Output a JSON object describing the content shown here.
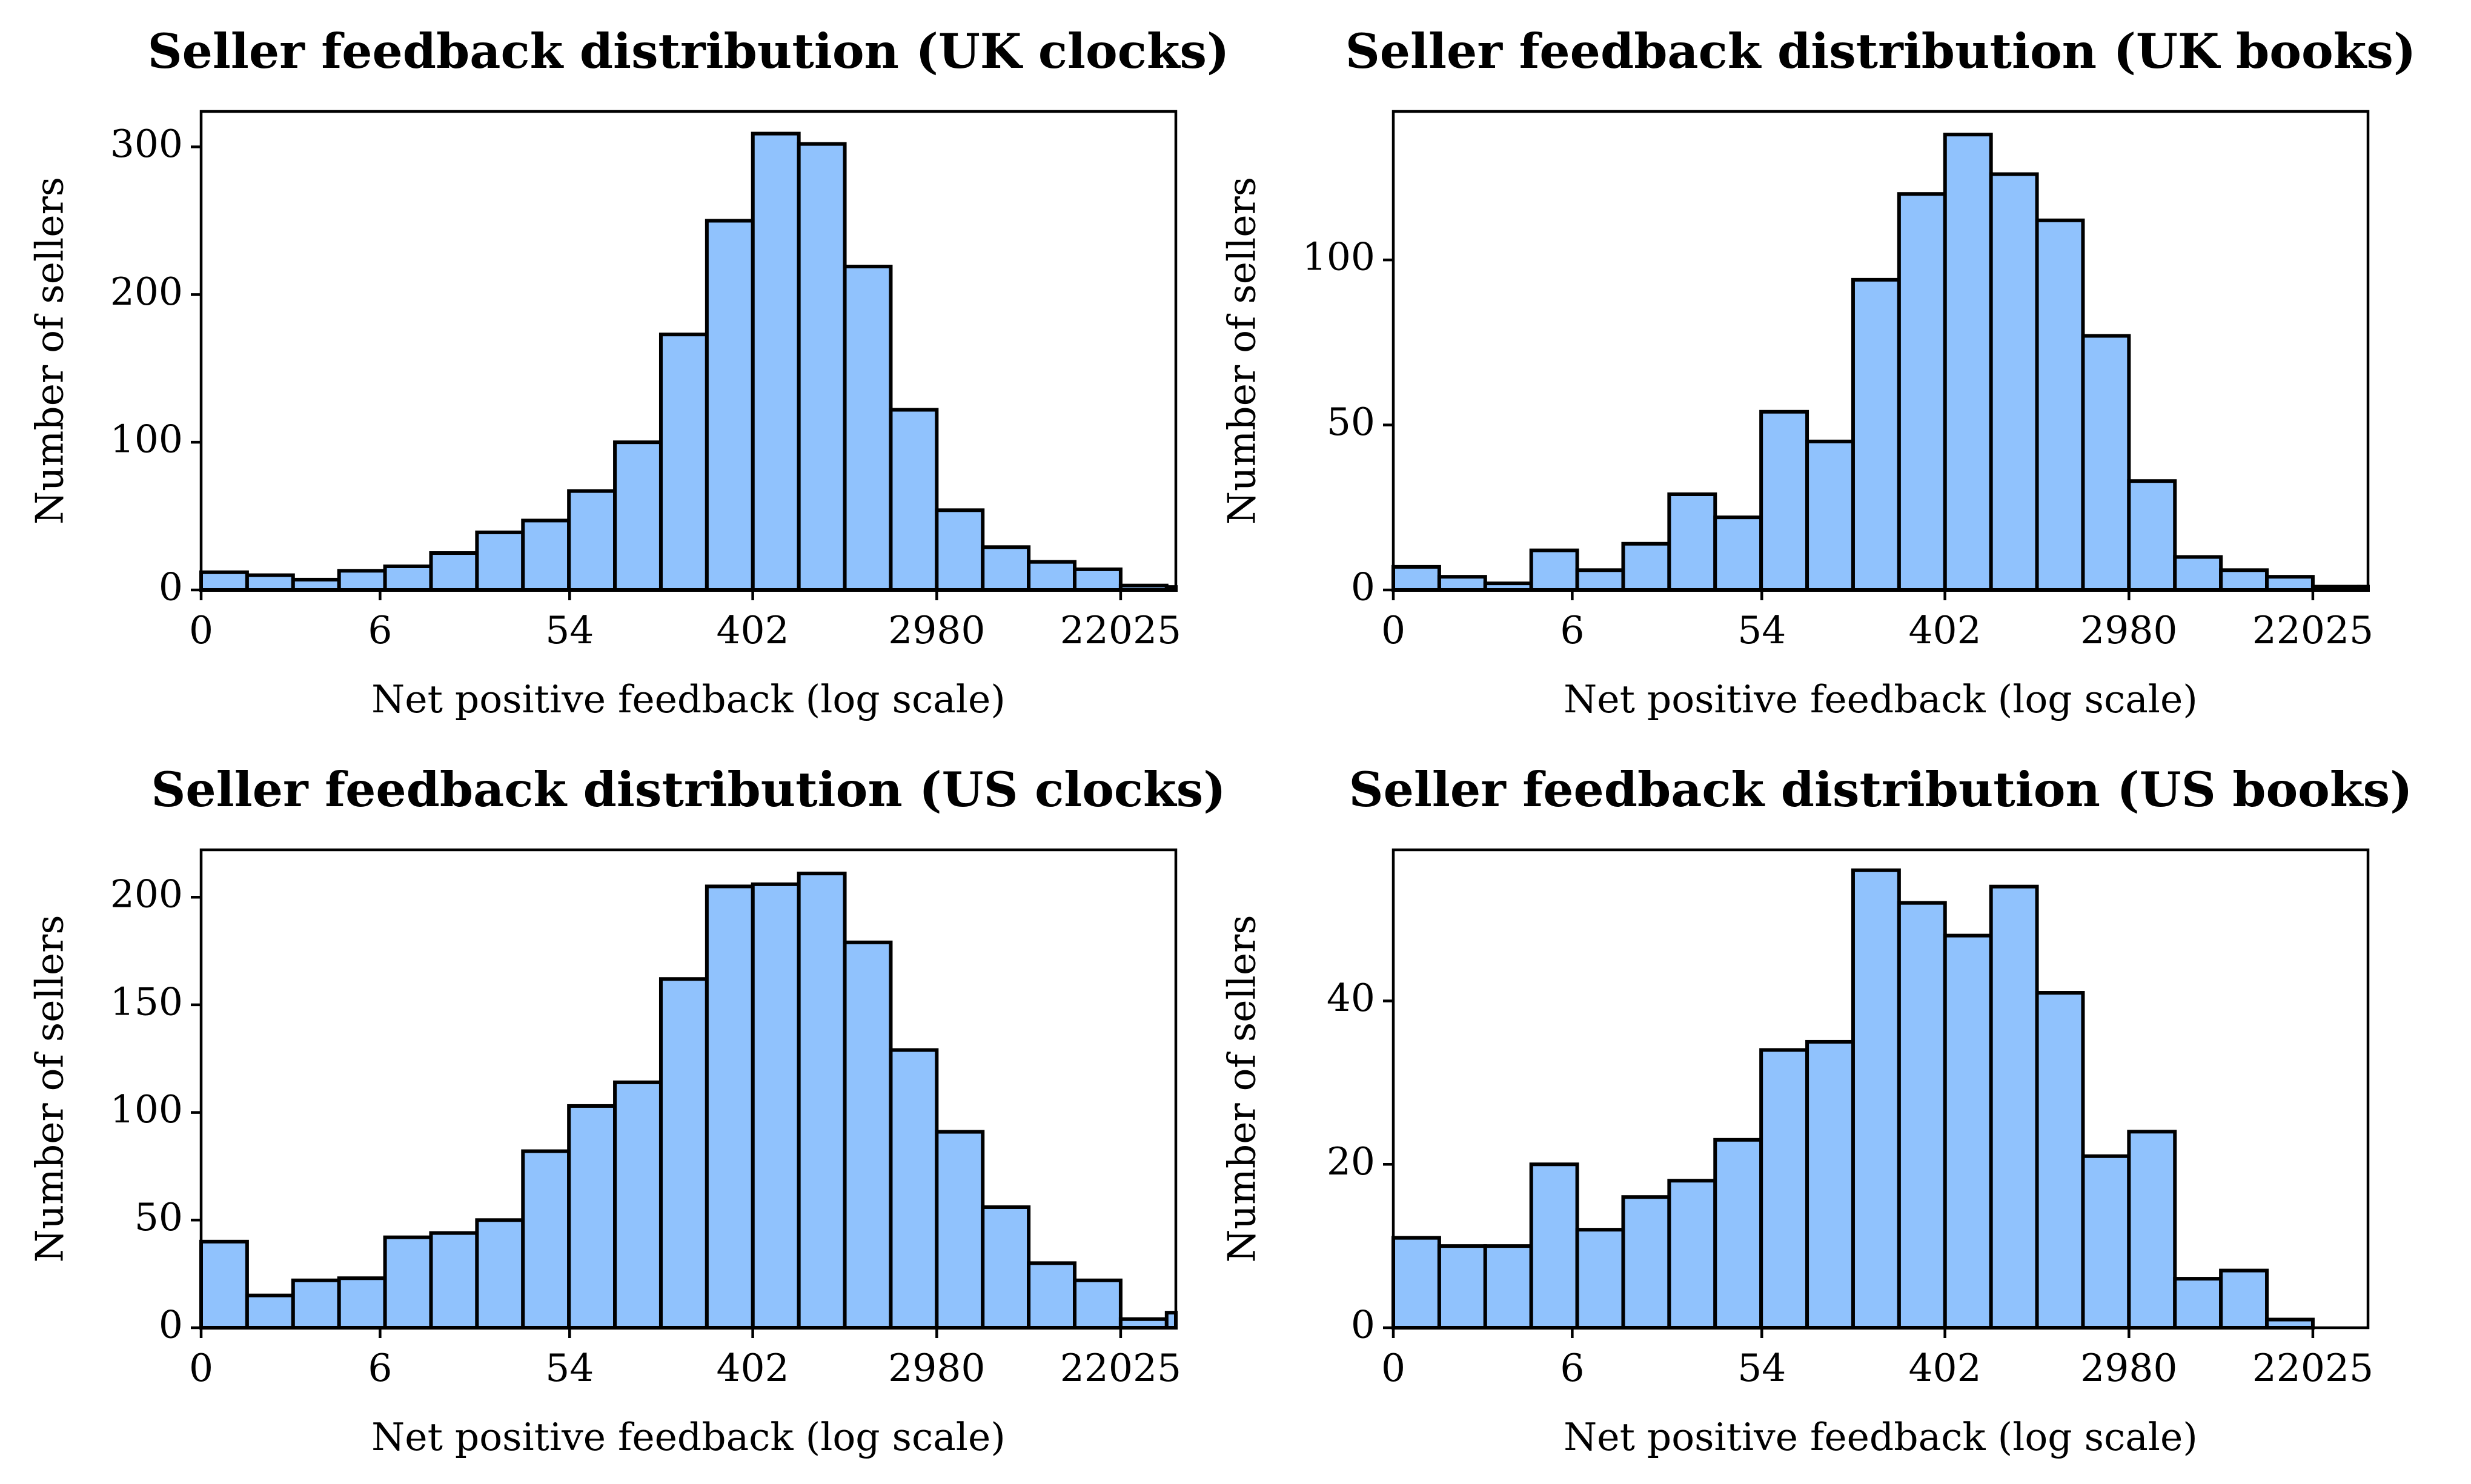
{
  "colors": {
    "bar_fill": "#90c2fd",
    "bar_edge": "#000000",
    "text": "#000000",
    "background": "#ffffff"
  },
  "chart_data": [
    {
      "type": "bar",
      "title": "Seller feedback distribution (UK clocks)",
      "xlabel": "Net positive feedback (log scale)",
      "ylabel": "Number of sellers",
      "x_scale": "log",
      "x_tick_labels": [
        "0",
        "6",
        "54",
        "402",
        "2980",
        "22025"
      ],
      "x_ticks": [
        0,
        6,
        54,
        402,
        2980,
        22025
      ],
      "x_range_ln": [
        0,
        10.6
      ],
      "bin_edges_ln": [
        0,
        0.5,
        1,
        1.5,
        2,
        2.5,
        3,
        3.5,
        4,
        4.5,
        5,
        5.5,
        6,
        6.5,
        7,
        7.5,
        8,
        8.5,
        9,
        9.5,
        10,
        10.5,
        10.6
      ],
      "values": [
        12,
        10,
        7,
        13,
        16,
        25,
        39,
        47,
        67,
        100,
        173,
        250,
        309,
        302,
        219,
        122,
        54,
        29,
        19,
        14,
        3,
        2
      ],
      "y_ticks": [
        0,
        100,
        200,
        300
      ],
      "ylim": [
        0,
        324
      ],
      "grid": false
    },
    {
      "type": "bar",
      "title": "Seller feedback distribution (UK books)",
      "xlabel": "Net positive feedback (log scale)",
      "ylabel": "Number of sellers",
      "x_scale": "log",
      "x_tick_labels": [
        "0",
        "6",
        "54",
        "402",
        "2980",
        "22025"
      ],
      "x_ticks": [
        0,
        6,
        54,
        402,
        2980,
        22025
      ],
      "x_range_ln": [
        0,
        10.6
      ],
      "bin_edges_ln": [
        0,
        0.5,
        1,
        1.5,
        2,
        2.5,
        3,
        3.5,
        4,
        4.5,
        5,
        5.5,
        6,
        6.5,
        7,
        7.5,
        8,
        8.5,
        9,
        9.5,
        10,
        10.5,
        10.6
      ],
      "values": [
        7,
        4,
        2,
        12,
        6,
        14,
        29,
        22,
        54,
        45,
        94,
        120,
        138,
        126,
        112,
        77,
        33,
        10,
        6,
        4,
        1,
        1
      ],
      "y_ticks": [
        0,
        50,
        100
      ],
      "ylim": [
        0,
        145
      ],
      "grid": false
    },
    {
      "type": "bar",
      "title": "Seller feedback distribution (US clocks)",
      "xlabel": "Net positive feedback (log scale)",
      "ylabel": "Number of sellers",
      "x_scale": "log",
      "x_tick_labels": [
        "0",
        "6",
        "54",
        "402",
        "2980",
        "22025"
      ],
      "x_ticks": [
        0,
        6,
        54,
        402,
        2980,
        22025
      ],
      "x_range_ln": [
        0,
        10.6
      ],
      "bin_edges_ln": [
        0,
        0.5,
        1,
        1.5,
        2,
        2.5,
        3,
        3.5,
        4,
        4.5,
        5,
        5.5,
        6,
        6.5,
        7,
        7.5,
        8,
        8.5,
        9,
        9.5,
        10,
        10.5,
        10.6
      ],
      "values": [
        40,
        15,
        22,
        23,
        42,
        44,
        50,
        82,
        103,
        114,
        162,
        205,
        206,
        211,
        179,
        129,
        91,
        56,
        30,
        22,
        4,
        7
      ],
      "y_ticks": [
        0,
        50,
        100,
        150,
        200
      ],
      "ylim": [
        0,
        222
      ],
      "grid": false
    },
    {
      "type": "bar",
      "title": "Seller feedback distribution (US books)",
      "xlabel": "Net positive feedback (log scale)",
      "ylabel": "Number of sellers",
      "x_scale": "log",
      "x_tick_labels": [
        "0",
        "6",
        "54",
        "402",
        "2980",
        "22025"
      ],
      "x_ticks": [
        0,
        6,
        54,
        402,
        2980,
        22025
      ],
      "x_range_ln": [
        0,
        10.6
      ],
      "bin_edges_ln": [
        0,
        0.5,
        1,
        1.5,
        2,
        2.5,
        3,
        3.5,
        4,
        4.5,
        5,
        5.5,
        6,
        6.5,
        7,
        7.5,
        8,
        8.5,
        9,
        9.5,
        10,
        10.5,
        10.6
      ],
      "values": [
        11,
        10,
        10,
        20,
        12,
        16,
        18,
        23,
        34,
        35,
        56,
        52,
        48,
        54,
        41,
        21,
        24,
        6,
        7,
        1,
        0,
        0
      ],
      "y_ticks": [
        0,
        20,
        40
      ],
      "ylim": [
        0,
        58.5
      ],
      "grid": false
    }
  ]
}
